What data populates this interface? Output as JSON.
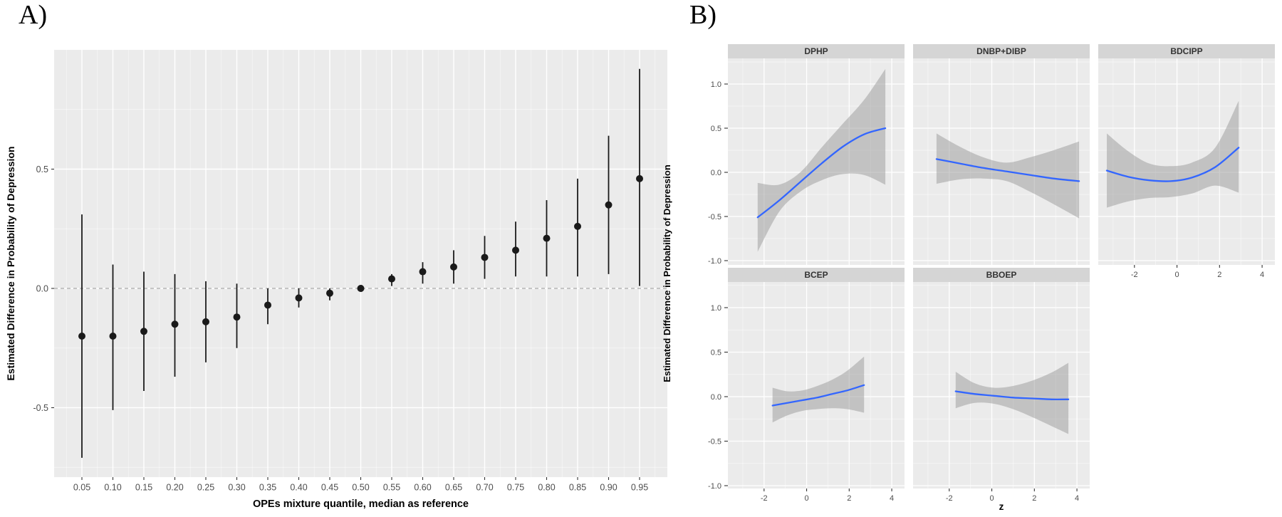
{
  "figure": {
    "panel_a_label": "A)",
    "panel_b_label": "B)"
  },
  "colors": {
    "plot_bg": "#EBEBEB",
    "grid": "#FFFFFF",
    "strip": "#D5D5D5",
    "band": "#999999",
    "curve": "#3366FF",
    "point": "#1A1A1A",
    "ref_line": "#A8A8A8",
    "tick": "#333333",
    "tick_text": "#4D4D4D",
    "title_text": "#000000"
  },
  "chart_data": [
    {
      "id": "panel_a",
      "type": "pointrange",
      "title": "",
      "xlabel": "OPEs mixture quantile, median as reference",
      "ylabel": "Estimated Difference in Probability of Depression",
      "x_ticks": [
        "0.05",
        "0.10",
        "0.15",
        "0.20",
        "0.25",
        "0.30",
        "0.35",
        "0.40",
        "0.45",
        "0.50",
        "0.55",
        "0.60",
        "0.65",
        "0.70",
        "0.75",
        "0.80",
        "0.85",
        "0.90",
        "0.95"
      ],
      "y_ticks": [
        "0.5",
        "0.0",
        "-0.5"
      ],
      "ylim": [
        -0.79,
        1.0
      ],
      "grid": true,
      "ref_line_y": 0,
      "points": [
        {
          "q": "0.05",
          "est": -0.2,
          "lo": -0.71,
          "hi": 0.31
        },
        {
          "q": "0.10",
          "est": -0.2,
          "lo": -0.51,
          "hi": 0.1
        },
        {
          "q": "0.15",
          "est": -0.18,
          "lo": -0.43,
          "hi": 0.07
        },
        {
          "q": "0.20",
          "est": -0.15,
          "lo": -0.37,
          "hi": 0.06
        },
        {
          "q": "0.25",
          "est": -0.14,
          "lo": -0.31,
          "hi": 0.03
        },
        {
          "q": "0.30",
          "est": -0.12,
          "lo": -0.25,
          "hi": 0.02
        },
        {
          "q": "0.35",
          "est": -0.07,
          "lo": -0.15,
          "hi": 0.0
        },
        {
          "q": "0.40",
          "est": -0.04,
          "lo": -0.08,
          "hi": 0.0
        },
        {
          "q": "0.45",
          "est": -0.02,
          "lo": -0.05,
          "hi": 0.0
        },
        {
          "q": "0.50",
          "est": 0.0,
          "lo": 0.0,
          "hi": 0.0
        },
        {
          "q": "0.55",
          "est": 0.04,
          "lo": 0.01,
          "hi": 0.06
        },
        {
          "q": "0.60",
          "est": 0.07,
          "lo": 0.02,
          "hi": 0.11
        },
        {
          "q": "0.65",
          "est": 0.09,
          "lo": 0.02,
          "hi": 0.16
        },
        {
          "q": "0.70",
          "est": 0.13,
          "lo": 0.04,
          "hi": 0.22
        },
        {
          "q": "0.75",
          "est": 0.16,
          "lo": 0.05,
          "hi": 0.28
        },
        {
          "q": "0.80",
          "est": 0.21,
          "lo": 0.05,
          "hi": 0.37
        },
        {
          "q": "0.85",
          "est": 0.26,
          "lo": 0.05,
          "hi": 0.46
        },
        {
          "q": "0.90",
          "est": 0.35,
          "lo": 0.06,
          "hi": 0.64
        },
        {
          "q": "0.95",
          "est": 0.46,
          "lo": 0.01,
          "hi": 0.92
        }
      ]
    },
    {
      "id": "panel_b",
      "type": "smooth_facets",
      "xlabel": "z",
      "ylabel": "Estimated Difference in Probability of Depression",
      "x_ticks": [
        "-2",
        "0",
        "2",
        "4"
      ],
      "y_ticks": [
        "1.0",
        "0.5",
        "0.0",
        "-0.5",
        "-1.0"
      ],
      "xlim": [
        -3.7,
        4.6
      ],
      "ylim": [
        -1.05,
        1.29
      ],
      "grid": true,
      "legend": "none",
      "facets": [
        {
          "name": "DPHP",
          "row": 0,
          "col": 0,
          "show_x_axis": false,
          "x": [
            -2.3,
            -1.3,
            -0.3,
            0.7,
            1.7,
            2.7,
            3.7
          ],
          "y": [
            -0.51,
            -0.32,
            -0.11,
            0.1,
            0.29,
            0.43,
            0.5
          ],
          "lo": [
            -0.9,
            -0.45,
            -0.22,
            -0.09,
            -0.02,
            -0.03,
            -0.14
          ],
          "hi": [
            -0.12,
            -0.14,
            0.0,
            0.28,
            0.55,
            0.82,
            1.17
          ]
        },
        {
          "name": "DNBP+DIBP",
          "row": 0,
          "col": 1,
          "show_x_axis": false,
          "x": [
            -2.6,
            -1.5,
            -0.4,
            0.7,
            1.8,
            2.9,
            4.1
          ],
          "y": [
            0.15,
            0.1,
            0.05,
            0.01,
            -0.03,
            -0.07,
            -0.1
          ],
          "lo": [
            -0.13,
            -0.08,
            -0.07,
            -0.1,
            -0.22,
            -0.36,
            -0.52
          ],
          "hi": [
            0.44,
            0.29,
            0.17,
            0.11,
            0.17,
            0.25,
            0.35
          ]
        },
        {
          "name": "BDCIPP",
          "row": 0,
          "col": 2,
          "show_x_axis": true,
          "x": [
            -3.3,
            -2.3,
            -1.3,
            -0.3,
            0.7,
            1.8,
            2.9
          ],
          "y": [
            0.02,
            -0.05,
            -0.09,
            -0.1,
            -0.06,
            0.06,
            0.28
          ],
          "lo": [
            -0.4,
            -0.33,
            -0.29,
            -0.28,
            -0.24,
            -0.15,
            -0.23
          ],
          "hi": [
            0.44,
            0.24,
            0.1,
            0.07,
            0.11,
            0.28,
            0.81
          ]
        },
        {
          "name": "BCEP",
          "row": 1,
          "col": 0,
          "show_x_axis": true,
          "x": [
            -1.6,
            -0.9,
            -0.2,
            0.5,
            1.2,
            1.9,
            2.7
          ],
          "y": [
            -0.1,
            -0.07,
            -0.04,
            -0.01,
            0.03,
            0.07,
            0.13
          ],
          "lo": [
            -0.29,
            -0.21,
            -0.16,
            -0.14,
            -0.13,
            -0.14,
            -0.18
          ],
          "hi": [
            0.1,
            0.06,
            0.07,
            0.12,
            0.19,
            0.29,
            0.45
          ]
        },
        {
          "name": "BBOEP",
          "row": 1,
          "col": 1,
          "show_x_axis": true,
          "x": [
            -1.7,
            -0.8,
            0.1,
            1.0,
            1.9,
            2.8,
            3.6
          ],
          "y": [
            0.06,
            0.03,
            0.01,
            -0.01,
            -0.02,
            -0.03,
            -0.03
          ],
          "lo": [
            -0.13,
            -0.07,
            -0.08,
            -0.14,
            -0.23,
            -0.33,
            -0.42
          ],
          "hi": [
            0.28,
            0.15,
            0.1,
            0.12,
            0.18,
            0.27,
            0.38
          ]
        }
      ]
    }
  ]
}
